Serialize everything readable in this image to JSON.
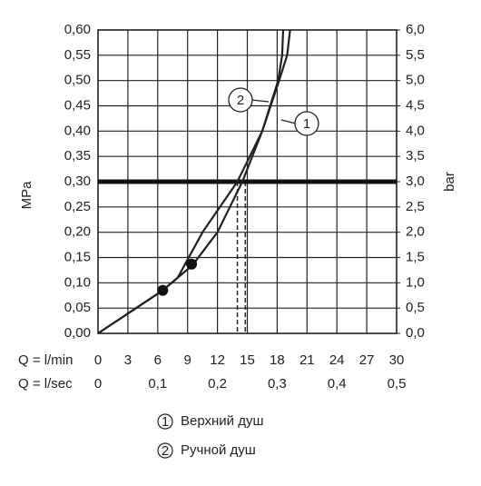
{
  "chart_data": {
    "type": "line",
    "ylabel": "MPa",
    "y2label": "bar",
    "xlabel": "Q = l/min",
    "x2label": "Q = l/sec",
    "xlim": [
      0,
      30
    ],
    "xticks": [
      0,
      3,
      6,
      9,
      12,
      15,
      18,
      21,
      24,
      27,
      30
    ],
    "x2lim": [
      0,
      0.5
    ],
    "x2ticks": [
      0,
      {
        "value": 0.1,
        "label": "0,1"
      },
      {
        "value": 0.2,
        "label": "0,2"
      },
      {
        "value": 0.3,
        "label": "0,3"
      },
      {
        "value": 0.4,
        "label": "0,4"
      },
      {
        "value": 0.5,
        "label": "0,5"
      }
    ],
    "ylim": [
      0,
      0.6
    ],
    "yticks": [
      {
        "value": 0,
        "label": "0,00"
      },
      {
        "value": 0.05,
        "label": "0,05"
      },
      {
        "value": 0.1,
        "label": "0,10"
      },
      {
        "value": 0.15,
        "label": "0,15"
      },
      {
        "value": 0.2,
        "label": "0,20"
      },
      {
        "value": 0.25,
        "label": "0,25"
      },
      {
        "value": 0.3,
        "label": "0,30"
      },
      {
        "value": 0.35,
        "label": "0,35"
      },
      {
        "value": 0.4,
        "label": "0,40"
      },
      {
        "value": 0.45,
        "label": "0,45"
      },
      {
        "value": 0.5,
        "label": "0,50"
      },
      {
        "value": 0.55,
        "label": "0,55"
      },
      {
        "value": 0.6,
        "label": "0,60"
      }
    ],
    "y2lim": [
      0,
      6
    ],
    "y2ticks": [
      {
        "value": 0,
        "label": "0,0"
      },
      {
        "value": 0.5,
        "label": "0,5"
      },
      {
        "value": 1,
        "label": "1,0"
      },
      {
        "value": 1.5,
        "label": "1,5"
      },
      {
        "value": 2,
        "label": "2,0"
      },
      {
        "value": 2.5,
        "label": "2,5"
      },
      {
        "value": 3,
        "label": "3,0"
      },
      {
        "value": 3.5,
        "label": "3,5"
      },
      {
        "value": 4,
        "label": "4,0"
      },
      {
        "value": 4.5,
        "label": "4,5"
      },
      {
        "value": 5,
        "label": "5,0"
      },
      {
        "value": 5.5,
        "label": "5,5"
      },
      {
        "value": 6,
        "label": "6,0"
      }
    ],
    "grid": true,
    "color": "#222222",
    "reference_y": 0.3,
    "dashed_x": [
      14.0,
      14.8
    ],
    "points": [
      {
        "x": 6.5,
        "y": 0.085
      },
      {
        "x": 9.4,
        "y": 0.137
      }
    ],
    "series": [
      {
        "name": "Верхний душ",
        "marker": "1",
        "x": [
          0,
          6.5,
          9.5,
          12,
          14.5,
          16.5,
          18.2,
          19,
          19.3
        ],
        "values": [
          0,
          0.085,
          0.135,
          0.2,
          0.3,
          0.4,
          0.5,
          0.55,
          0.6
        ]
      },
      {
        "name": "Ручной душ",
        "marker": "2",
        "x": [
          0,
          6.5,
          8,
          10.5,
          14,
          16.5,
          18.1,
          18.5,
          18.6
        ],
        "values": [
          0,
          0.085,
          0.11,
          0.2,
          0.3,
          0.4,
          0.5,
          0.55,
          0.6
        ]
      }
    ]
  }
}
